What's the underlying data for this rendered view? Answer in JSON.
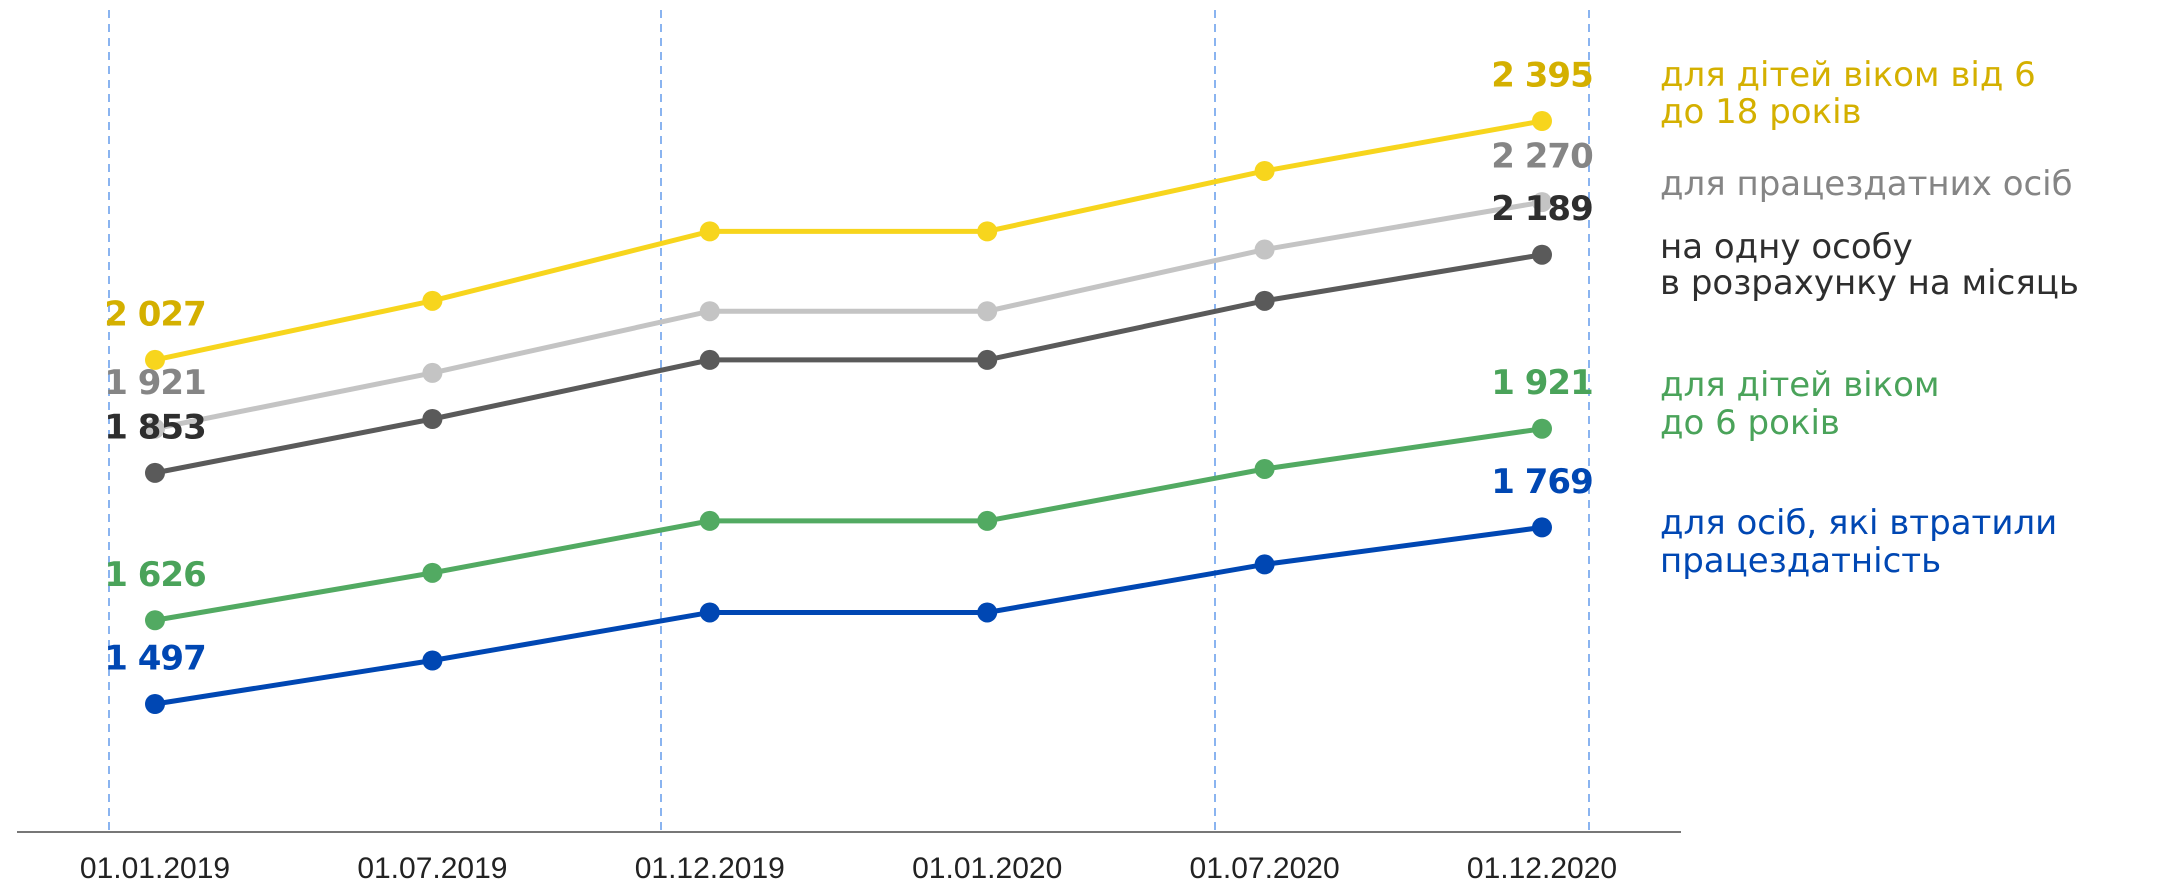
{
  "chart_data": {
    "type": "line",
    "x": [
      "01.01.2019",
      "01.07.2019",
      "01.12.2019",
      "01.01.2020",
      "01.07.2020",
      "01.12.2020"
    ],
    "series": [
      {
        "name": "для дітей віком від 6\nдо 18 років",
        "color": "#f7d51d",
        "label_color": "#d4b000",
        "values": [
          2027,
          2118,
          2225,
          2225,
          2318,
          2395
        ],
        "value_labels": [
          "2 027",
          null,
          null,
          null,
          null,
          "2 395"
        ]
      },
      {
        "name": "для працездатних осіб",
        "color": "#c4c4c4",
        "label_color": "#858585",
        "values": [
          1921,
          2007,
          2102,
          2102,
          2197,
          2270
        ],
        "value_labels": [
          "1 921",
          null,
          null,
          null,
          null,
          "2 270"
        ]
      },
      {
        "name": "на одну особу\nв розрахунку на місяць",
        "color": "#5a5a5a",
        "label_color": "#2e2e2e",
        "values": [
          1853,
          1936,
          2027,
          2027,
          2118,
          2189
        ],
        "value_labels": [
          "1 853",
          null,
          null,
          null,
          null,
          "2 189"
        ]
      },
      {
        "name": "для дітей віком\nдо 6 років",
        "color": "#52aa62",
        "label_color": "#4aa35a",
        "values": [
          1626,
          1699,
          1779,
          1779,
          1859,
          1921
        ],
        "value_labels": [
          "1 626",
          null,
          null,
          null,
          null,
          "1 921"
        ]
      },
      {
        "name": "для осіб, які втратили\nпрацездатність",
        "color": "#0047b3",
        "label_color": "#0047b3",
        "values": [
          1497,
          1564,
          1638,
          1638,
          1712,
          1769
        ],
        "value_labels": [
          "1 497",
          null,
          null,
          null,
          null,
          "1 769"
        ]
      }
    ]
  }
}
